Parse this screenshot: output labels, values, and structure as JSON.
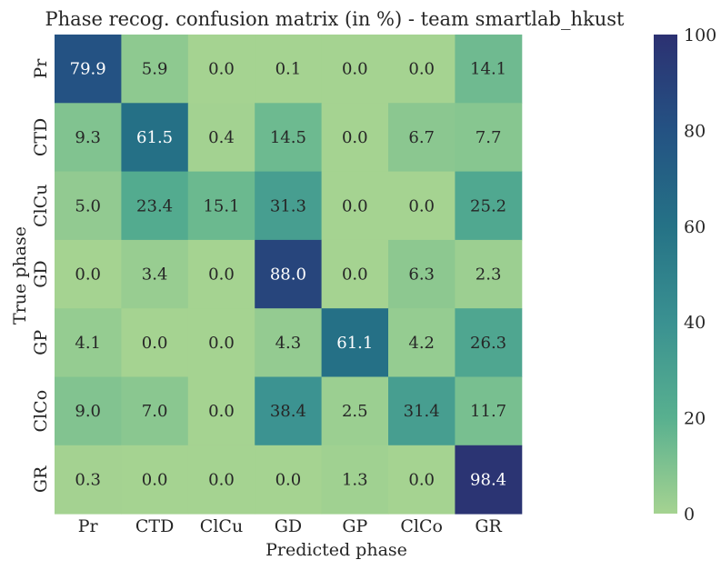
{
  "chart_data": {
    "type": "heatmap",
    "title": "Phase recog. confusion matrix (in %) - team smartlab_hkust",
    "xlabel": "Predicted phase",
    "ylabel": "True phase",
    "x_categories": [
      "Pr",
      "CTD",
      "ClCu",
      "GD",
      "GP",
      "ClCo",
      "GR"
    ],
    "y_categories": [
      "Pr",
      "CTD",
      "ClCu",
      "GD",
      "GP",
      "ClCo",
      "GR"
    ],
    "values": [
      [
        79.9,
        5.9,
        0.0,
        0.1,
        0.0,
        0.0,
        14.1
      ],
      [
        9.3,
        61.5,
        0.4,
        14.5,
        0.0,
        6.7,
        7.7
      ],
      [
        5.0,
        23.4,
        15.1,
        31.3,
        0.0,
        0.0,
        25.2
      ],
      [
        0.0,
        3.4,
        0.0,
        88.0,
        0.0,
        6.3,
        2.3
      ],
      [
        4.1,
        0.0,
        0.0,
        4.3,
        61.1,
        4.2,
        26.3
      ],
      [
        9.0,
        7.0,
        0.0,
        38.4,
        2.5,
        31.4,
        11.7
      ],
      [
        0.3,
        0.0,
        0.0,
        0.0,
        1.3,
        0.0,
        98.4
      ]
    ],
    "value_range": [
      0,
      100
    ],
    "colorbar_ticks": [
      0,
      20,
      40,
      60,
      80,
      100
    ],
    "colormap": "crest",
    "colormap_stops": [
      "#a5d391",
      "#58b08f",
      "#3a9191",
      "#257286",
      "#245283",
      "#2c3172"
    ],
    "label_color_dark": "#262626",
    "label_color_light": "#ffffff"
  }
}
